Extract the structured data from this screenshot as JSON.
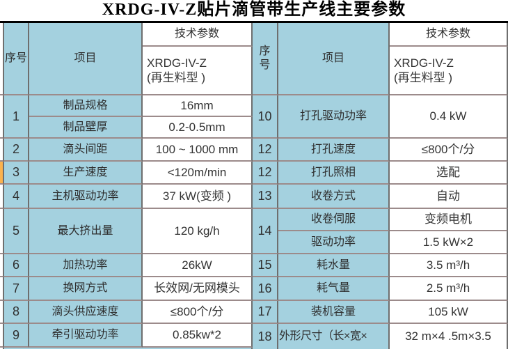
{
  "title": "XRDG-IV-Z贴片滴管带生产线主要参数",
  "header": {
    "no_left": "序号",
    "no_right": "序\n号",
    "item": "项目",
    "param": "技术参数",
    "model": "XRDG-IV-Z\n(再生料型 )"
  },
  "left": {
    "row1": {
      "no": "1",
      "a_label": "制品规格",
      "a_value": "16mm",
      "b_label": "制品壁厚",
      "b_value": "0.2-0.5mm"
    },
    "rows": [
      {
        "no": "2",
        "label": "滴头间距",
        "value": "100 ~ 1000 mm"
      },
      {
        "no": "3",
        "label": "生产速度",
        "value": "<120m/min"
      },
      {
        "no": "4",
        "label": "主机驱动功率",
        "value": "37 kW(变频 )"
      },
      {
        "no": "5",
        "label": "最大挤出量",
        "value": "120 kg/h"
      },
      {
        "no": "6",
        "label": "加热功率",
        "value": "26kW"
      },
      {
        "no": "7",
        "label": "换网方式",
        "value": "长效网/无网模头"
      },
      {
        "no": "8",
        "label": "滴头供应速度",
        "value": "≤800个/分"
      },
      {
        "no": "9",
        "label": "牵引驱动功率",
        "value": "0.85kw*2"
      }
    ]
  },
  "right": {
    "rows_top": [
      {
        "no": "10",
        "label": "打孔驱动功率",
        "value": "0.4 kW"
      },
      {
        "no": "12",
        "label": "打孔速度",
        "value": "≤800个/分"
      },
      {
        "no": "12",
        "label": "打孔照相",
        "value": "选配"
      },
      {
        "no": "13",
        "label": "收卷方式",
        "value": "自动"
      }
    ],
    "row14": {
      "no": "14",
      "a_label": "收卷伺服",
      "a_value": "变频电机",
      "b_label": "驱动功率",
      "b_value": "1.5 kW×2"
    },
    "rows_bottom": [
      {
        "no": "15",
        "label": "耗水量",
        "value": "3.5 m³/h"
      },
      {
        "no": "16",
        "label": "耗气量",
        "value": "2.5 m³/h"
      },
      {
        "no": "17",
        "label": "装机容量",
        "value": "105 kW"
      },
      {
        "no": "18",
        "label": "外形尺寸（长×宽×",
        "value": "32 m×4 .5m×3.5"
      }
    ]
  },
  "colors": {
    "cell_blue": "#a4d1df",
    "value_bg": "#ffffff",
    "border_vertical": "#6e6e6e",
    "border_horizontal": "#9c8b8b",
    "marker_orange": "#fbb24e",
    "title_color": "#000000"
  }
}
